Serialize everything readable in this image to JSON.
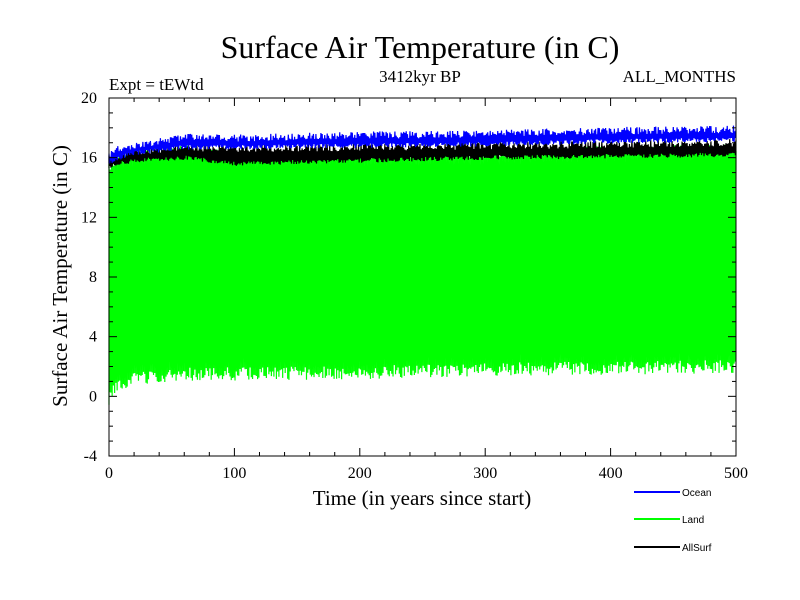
{
  "chart_data": {
    "type": "line",
    "title": "Surface Air Temperature (in C)",
    "subtitle_left": "Expt = tEWtd",
    "subtitle_center": "3412kyr BP",
    "subtitle_right": "ALL_MONTHS",
    "xlabel": "Time (in years since start)",
    "ylabel": "Surface Air Temperature (in C)",
    "xlim": [
      0,
      500
    ],
    "ylim": [
      -4,
      20
    ],
    "xticks": [
      0,
      100,
      200,
      300,
      400,
      500
    ],
    "yticks": [
      -4,
      0,
      4,
      8,
      12,
      16,
      20
    ],
    "x_tick_labels": [
      "0",
      "100",
      "200",
      "300",
      "400",
      "500"
    ],
    "y_tick_labels": [
      "-4",
      "0",
      "4",
      "8",
      "12",
      "16",
      "20"
    ],
    "series": [
      {
        "name": "Ocean",
        "color": "#0000ff",
        "x": [
          0,
          5,
          20,
          60,
          100,
          200,
          300,
          400,
          500
        ],
        "low": [
          15.6,
          15.9,
          16.3,
          16.7,
          16.7,
          16.8,
          16.9,
          17.1,
          17.2
        ],
        "high": [
          16.2,
          16.5,
          16.8,
          17.4,
          17.3,
          17.5,
          17.6,
          17.8,
          17.9
        ]
      },
      {
        "name": "Land",
        "color": "#00ff00",
        "x": [
          0,
          5,
          20,
          60,
          100,
          200,
          300,
          400,
          500
        ],
        "low": [
          -0.2,
          0.5,
          1.2,
          1.5,
          1.5,
          1.6,
          1.8,
          1.9,
          2.0
        ],
        "high": [
          15.4,
          15.8,
          16.2,
          16.6,
          16.1,
          16.2,
          16.3,
          16.5,
          16.6
        ]
      },
      {
        "name": "AllSurf",
        "color": "#000000",
        "x": [
          0,
          5,
          20,
          60,
          100,
          200,
          300,
          400,
          500
        ],
        "low": [
          15.4,
          15.6,
          15.8,
          16.0,
          15.6,
          15.8,
          16.0,
          16.1,
          16.2
        ],
        "high": [
          15.9,
          16.1,
          16.4,
          16.7,
          16.6,
          16.7,
          16.8,
          16.9,
          17.0
        ]
      }
    ],
    "legend": [
      "Ocean",
      "Land",
      "AllSurf"
    ]
  }
}
